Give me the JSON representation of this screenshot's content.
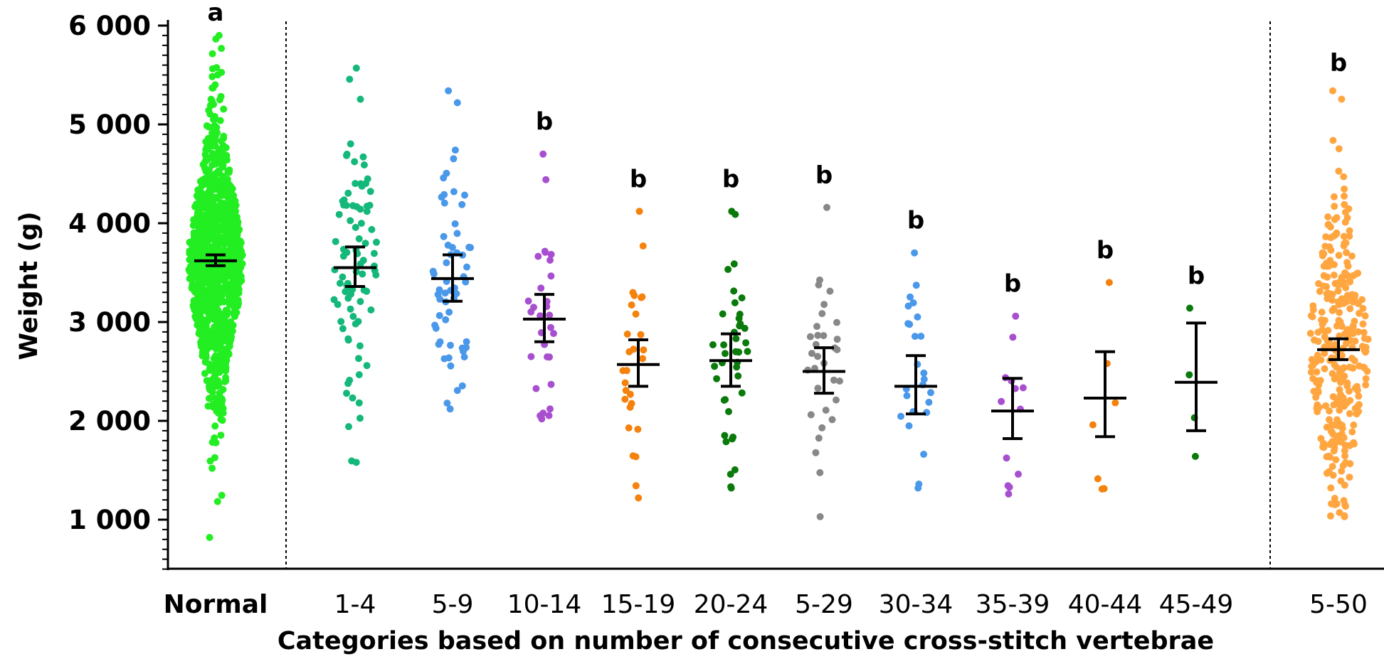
{
  "chart_data": {
    "type": "scatter",
    "subtype": "dot-plot-with-mean-and-error-bars",
    "xlabel": "Categories based on number of consecutive cross-stitch vertebrae",
    "ylabel": "Weight (g)",
    "ylim": [
      500,
      6100
    ],
    "yticks": [
      1000,
      2000,
      3000,
      4000,
      5000,
      6000
    ],
    "ytick_labels": [
      "1 000",
      "2 000",
      "3 000",
      "4 000",
      "5 000",
      "6 000"
    ],
    "grid": false,
    "legend": "none",
    "separators": "dotted vertical lines after Normal and before 5-50",
    "groups": [
      {
        "label": "Normal",
        "letter": "a",
        "color": "#22ee22",
        "n": 1100,
        "mean": 3620,
        "err": [
          3570,
          3680
        ],
        "min": 820,
        "max": 5900,
        "sd": 700
      },
      {
        "label": "1-4",
        "letter": "",
        "color": "#14b87a",
        "n": 85,
        "mean": 3550,
        "err": [
          3360,
          3760
        ],
        "min": 1580,
        "max": 5570,
        "sd": 800
      },
      {
        "label": "5-9",
        "letter": "",
        "color": "#4a98ea",
        "n": 58,
        "mean": 3440,
        "err": [
          3210,
          3680
        ],
        "min": 2120,
        "max": 5340,
        "sd": 780
      },
      {
        "label": "10-14",
        "letter": "b",
        "color": "#a84fd0",
        "n": 30,
        "mean": 3030,
        "err": [
          2800,
          3280
        ],
        "min": 2020,
        "max": 4700,
        "sd": 640
      },
      {
        "label": "15-19",
        "letter": "b",
        "color": "#f5820d",
        "n": 28,
        "mean": 2570,
        "err": [
          2350,
          2820
        ],
        "min": 1220,
        "max": 4120,
        "sd": 580
      },
      {
        "label": "20-24",
        "letter": "b",
        "color": "#0a7a0a",
        "n": 40,
        "mean": 2610,
        "err": [
          2350,
          2880
        ],
        "min": 1320,
        "max": 4120,
        "sd": 640
      },
      {
        "label": "5-29",
        "letter": "b",
        "color": "#888888",
        "n": 32,
        "mean": 2500,
        "err": [
          2280,
          2740
        ],
        "min": 1030,
        "max": 4160,
        "sd": 620
      },
      {
        "label": "30-34",
        "letter": "b",
        "color": "#4a98ea",
        "n": 26,
        "mean": 2350,
        "err": [
          2070,
          2660
        ],
        "min": 1320,
        "max": 3700,
        "sd": 600
      },
      {
        "label": "35-39",
        "letter": "b",
        "color": "#a84fd0",
        "n": 13,
        "mean": 2100,
        "err": [
          1820,
          2430
        ],
        "min": 1260,
        "max": 3060,
        "sd": 540
      },
      {
        "label": "40-44",
        "letter": "b",
        "color": "#f5820d",
        "n": 7,
        "mean": 2230,
        "err": [
          1840,
          2700
        ],
        "min": 1310,
        "max": 3400,
        "sd": 700
      },
      {
        "label": "45-49",
        "letter": "b",
        "color": "#0a7a0a",
        "n": 4,
        "mean": 2390,
        "err": [
          1900,
          2990
        ],
        "min": 1640,
        "max": 3140,
        "sd": 650
      },
      {
        "label": "5-50",
        "letter": "b",
        "color": "#ffa640",
        "n": 300,
        "mean": 2720,
        "err": [
          2620,
          2830
        ],
        "min": 1030,
        "max": 5340,
        "sd": 780
      }
    ]
  }
}
